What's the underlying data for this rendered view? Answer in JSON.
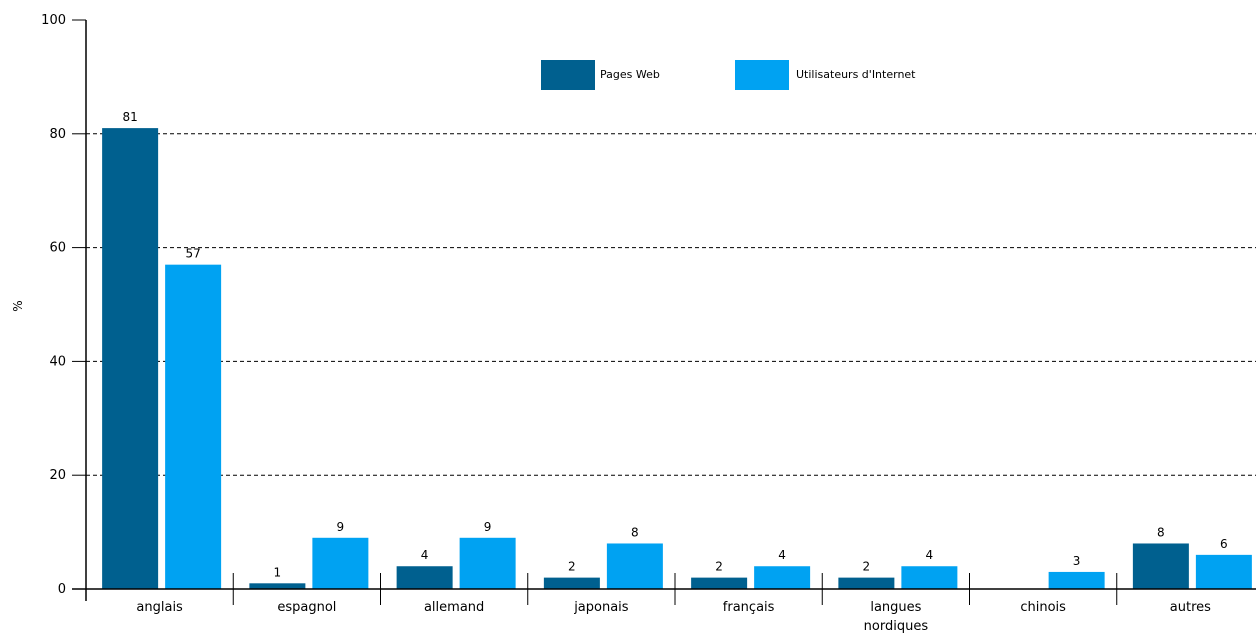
{
  "chart_data": {
    "type": "bar",
    "title": "",
    "xlabel": "",
    "ylabel": "%",
    "ylim": [
      0,
      100
    ],
    "yticks": [
      0,
      20,
      40,
      60,
      80,
      100
    ],
    "grid": "horizontal dashed",
    "legend_position": "top",
    "categories": [
      [
        "anglais"
      ],
      [
        "espagnol"
      ],
      [
        "allemand"
      ],
      [
        "japonais"
      ],
      [
        "français"
      ],
      [
        "langues",
        "nordiques"
      ],
      [
        "chinois"
      ],
      [
        "autres"
      ]
    ],
    "series": [
      {
        "name": "Pages Web",
        "color": "#00608f",
        "values": [
          81,
          1,
          4,
          2,
          2,
          2,
          null,
          8
        ],
        "labels": [
          "81",
          "1",
          "4",
          "2",
          "2",
          "2",
          "",
          "8"
        ]
      },
      {
        "name": "Utilisateurs d'Internet",
        "color": "#00a2f2",
        "values": [
          57,
          9,
          9,
          8,
          4,
          4,
          3,
          6
        ],
        "labels": [
          "57",
          "9",
          "9",
          "8",
          "4",
          "4",
          "3",
          "6"
        ]
      }
    ]
  }
}
